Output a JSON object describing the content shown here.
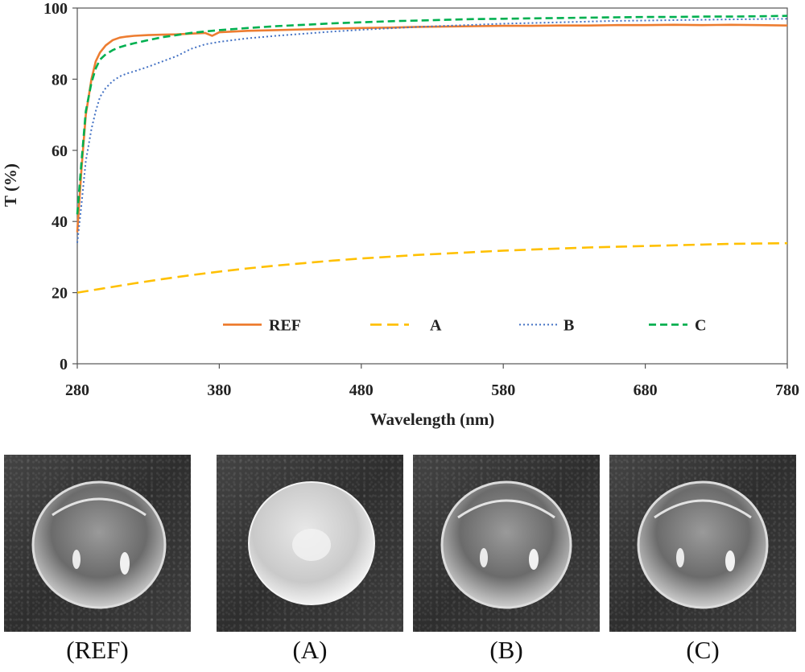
{
  "chart_data": {
    "type": "line",
    "title": "",
    "xlabel": "Wavelength (nm)",
    "ylabel": "T (%)",
    "xlim": [
      280,
      780
    ],
    "ylim": [
      0,
      100
    ],
    "xticks": [
      280,
      380,
      480,
      580,
      680,
      780
    ],
    "yticks": [
      0,
      20,
      40,
      60,
      80,
      100
    ],
    "grid": false,
    "legend_position": "bottom-inside",
    "series": [
      {
        "name": "REF",
        "color": "#ED7D31",
        "style": "solid",
        "x": [
          280,
          283,
          286,
          290,
          293,
          296,
          300,
          305,
          310,
          315,
          320,
          330,
          340,
          350,
          360,
          370,
          375,
          380,
          390,
          400,
          420,
          440,
          460,
          480,
          500,
          520,
          540,
          560,
          580,
          600,
          620,
          640,
          660,
          680,
          700,
          720,
          740,
          760,
          780
        ],
        "y": [
          37,
          55,
          70,
          80,
          85,
          87.5,
          89.5,
          91,
          91.7,
          92,
          92.2,
          92.4,
          92.5,
          92.6,
          92.8,
          93,
          92.2,
          93.2,
          93.4,
          93.6,
          93.8,
          94,
          94.2,
          94.4,
          94.5,
          94.7,
          94.8,
          94.9,
          95,
          95,
          95.1,
          95.1,
          95.2,
          95.2,
          95.3,
          95.2,
          95.3,
          95.2,
          95.1
        ]
      },
      {
        "name": "A",
        "color": "#FFC000",
        "style": "dashed",
        "x": [
          280,
          300,
          320,
          340,
          360,
          380,
          400,
          420,
          440,
          460,
          480,
          500,
          520,
          540,
          560,
          580,
          600,
          620,
          640,
          660,
          680,
          700,
          720,
          740,
          760,
          780
        ],
        "y": [
          20,
          21.3,
          22.6,
          23.8,
          24.9,
          25.9,
          26.8,
          27.6,
          28.3,
          29,
          29.6,
          30.1,
          30.6,
          31,
          31.4,
          31.8,
          32.1,
          32.4,
          32.7,
          32.9,
          33.1,
          33.3,
          33.5,
          33.7,
          33.8,
          33.9
        ]
      },
      {
        "name": "B",
        "color": "#4472C4",
        "style": "dotted",
        "x": [
          280,
          283,
          286,
          290,
          293,
          296,
          300,
          305,
          310,
          315,
          320,
          330,
          340,
          350,
          360,
          370,
          380,
          400,
          420,
          440,
          460,
          480,
          500,
          520,
          540,
          560,
          580,
          600,
          620,
          640,
          660,
          680,
          700,
          720,
          740,
          760,
          780
        ],
        "y": [
          34,
          45,
          57,
          66,
          71,
          75,
          77.5,
          79.5,
          80.8,
          81.6,
          82.2,
          83.5,
          85,
          86.5,
          88.5,
          89.8,
          90.5,
          91.5,
          92.2,
          92.8,
          93.4,
          93.9,
          94.3,
          94.7,
          95,
          95.3,
          95.6,
          95.8,
          96,
          96.2,
          96.4,
          96.5,
          96.6,
          96.7,
          96.8,
          96.9,
          97
        ]
      },
      {
        "name": "C",
        "color": "#00B050",
        "style": "dashed",
        "x": [
          280,
          283,
          286,
          290,
          293,
          296,
          300,
          305,
          310,
          315,
          320,
          330,
          340,
          350,
          360,
          380,
          400,
          420,
          440,
          460,
          480,
          500,
          520,
          540,
          560,
          580,
          600,
          620,
          640,
          660,
          680,
          700,
          720,
          740,
          760,
          780
        ],
        "y": [
          42,
          57,
          71,
          79,
          83,
          85.5,
          87,
          88.2,
          89,
          89.6,
          90.1,
          91,
          91.8,
          92.4,
          93,
          93.8,
          94.4,
          94.9,
          95.3,
          95.7,
          96,
          96.3,
          96.5,
          96.7,
          96.9,
          97,
          97.1,
          97.2,
          97.3,
          97.4,
          97.5,
          97.5,
          97.6,
          97.6,
          97.7,
          97.8
        ]
      }
    ]
  },
  "photos": [
    {
      "caption": "(REF)",
      "appearance": "clear"
    },
    {
      "caption": "(A)",
      "appearance": "opaque"
    },
    {
      "caption": "(B)",
      "appearance": "clear"
    },
    {
      "caption": "(C)",
      "appearance": "clear"
    }
  ]
}
